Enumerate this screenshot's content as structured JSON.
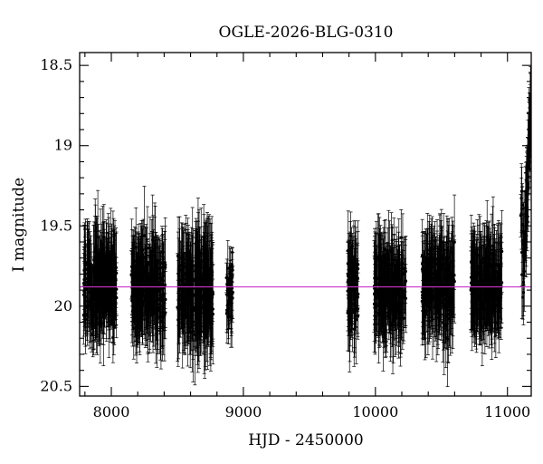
{
  "chart_data": {
    "type": "scatter",
    "title": "OGLE-2026-BLG-0310",
    "xlabel": "HJD - 2450000",
    "ylabel": "I magnitude",
    "xlim": [
      7760,
      11180
    ],
    "ylim": [
      20.56,
      18.42
    ],
    "y_inverted": true,
    "x_ticks": [
      8000,
      9000,
      10000,
      11000
    ],
    "x_tick_labels": [
      "8000",
      "9000",
      "10000",
      "11000"
    ],
    "y_ticks": [
      18.5,
      19,
      19.5,
      20,
      20.5
    ],
    "y_tick_labels": [
      "18.5",
      "19",
      "19.5",
      "20",
      "20.5"
    ],
    "baseline_magnitude": 19.88,
    "baseline_color": "#cc33cc",
    "marker_color": "#000000",
    "grid": false,
    "seasons": [
      {
        "start": 7790,
        "end": 8040,
        "mean_mag": 19.88,
        "scatter": 0.22,
        "err": 0.22,
        "n": 260
      },
      {
        "start": 8150,
        "end": 8410,
        "mean_mag": 19.88,
        "scatter": 0.22,
        "err": 0.22,
        "n": 260
      },
      {
        "start": 8500,
        "end": 8770,
        "mean_mag": 19.9,
        "scatter": 0.23,
        "err": 0.24,
        "n": 280
      },
      {
        "start": 8870,
        "end": 8920,
        "mean_mag": 19.88,
        "scatter": 0.2,
        "err": 0.15,
        "n": 40
      },
      {
        "start": 9790,
        "end": 9870,
        "mean_mag": 19.88,
        "scatter": 0.22,
        "err": 0.2,
        "n": 90
      },
      {
        "start": 9990,
        "end": 10230,
        "mean_mag": 19.88,
        "scatter": 0.22,
        "err": 0.22,
        "n": 230
      },
      {
        "start": 10350,
        "end": 10600,
        "mean_mag": 19.87,
        "scatter": 0.22,
        "err": 0.22,
        "n": 230
      },
      {
        "start": 10720,
        "end": 10960,
        "mean_mag": 19.87,
        "scatter": 0.22,
        "err": 0.22,
        "n": 230
      },
      {
        "start": 11100,
        "end": 11180,
        "mean_mag": 19.5,
        "scatter": 0.3,
        "err": 0.2,
        "n": 70
      }
    ],
    "event": {
      "peak_hjd": 11175,
      "peak_mag": 18.8,
      "color": "#cc33cc"
    }
  }
}
